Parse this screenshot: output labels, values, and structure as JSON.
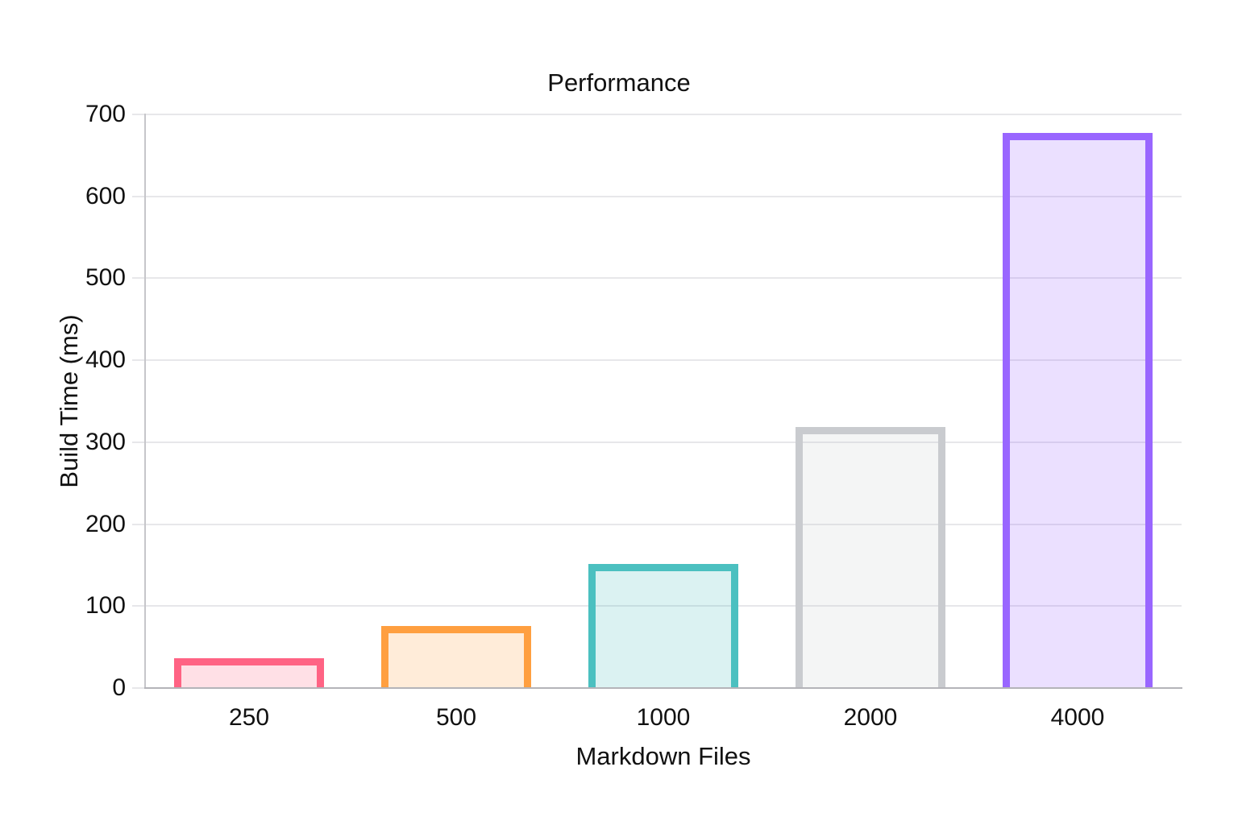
{
  "chart_data": {
    "type": "bar",
    "title": "Performance",
    "xlabel": "Markdown Files",
    "ylabel": "Build Time (ms)",
    "categories": [
      "250",
      "500",
      "1000",
      "2000",
      "4000"
    ],
    "values": [
      35,
      75,
      150,
      318,
      676
    ],
    "ylim": [
      0,
      700
    ],
    "ytick_step": 100,
    "ytick_labels": [
      "0",
      "100",
      "200",
      "300",
      "400",
      "500",
      "600",
      "700"
    ],
    "grid": true,
    "legend": false,
    "bar_colors": [
      {
        "border": "#FF6384",
        "fill": "rgba(255, 99, 132, 0.2)"
      },
      {
        "border": "#FF9F40",
        "fill": "rgba(255, 159, 64, 0.2)"
      },
      {
        "border": "#4BC0C0",
        "fill": "rgba(75, 192, 192, 0.2)"
      },
      {
        "border": "#C9CBCF",
        "fill": "rgba(201, 203, 207, 0.2)"
      },
      {
        "border": "#9966FF",
        "fill": "rgba(153, 102, 255, 0.2)"
      }
    ]
  },
  "theme": {
    "background": "#FFFFFF",
    "text_color": "#111111",
    "grid_color": "#E7E7EA",
    "x_axis_line_color": "#B4B4B9",
    "y_axis_line_color": "#C6C6CA"
  }
}
